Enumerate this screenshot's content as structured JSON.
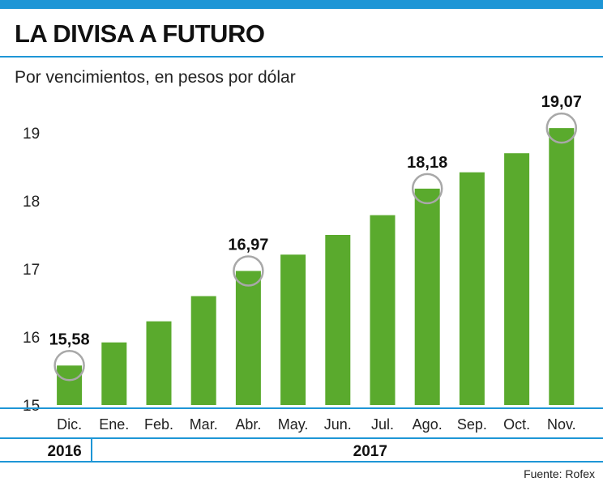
{
  "header": {
    "title": "LA DIVISA A FUTURO",
    "subtitle": "Por vencimientos, en pesos por dólar"
  },
  "chart_data": {
    "type": "bar",
    "title": "LA DIVISA A FUTURO",
    "subtitle": "Por vencimientos, en pesos por dólar",
    "categories": [
      "Dic.",
      "Ene.",
      "Feb.",
      "Mar.",
      "Abr.",
      "May.",
      "Jun.",
      "Jul.",
      "Ago.",
      "Sep.",
      "Oct.",
      "Nov."
    ],
    "values": [
      15.58,
      15.92,
      16.23,
      16.6,
      16.97,
      17.21,
      17.5,
      17.79,
      18.18,
      18.42,
      18.7,
      19.07
    ],
    "year_groups": [
      {
        "label": "2016",
        "start": 0,
        "end": 0
      },
      {
        "label": "2017",
        "start": 1,
        "end": 11
      }
    ],
    "highlighted_labels": [
      {
        "index": 0,
        "label": "15,58"
      },
      {
        "index": 4,
        "label": "16,97"
      },
      {
        "index": 8,
        "label": "18,18"
      },
      {
        "index": 11,
        "label": "19,07"
      }
    ],
    "yticks": [
      "15",
      "16",
      "17",
      "18",
      "19"
    ],
    "ylim": [
      15,
      19.2
    ],
    "xlabel": "",
    "ylabel": "",
    "grid": false,
    "colors": {
      "bar": "#5aaa2d",
      "accent": "#1e96d6",
      "circle": "#a8a8a8",
      "text": "#111111"
    }
  },
  "footer": {
    "source": "Fuente: Rofex"
  }
}
